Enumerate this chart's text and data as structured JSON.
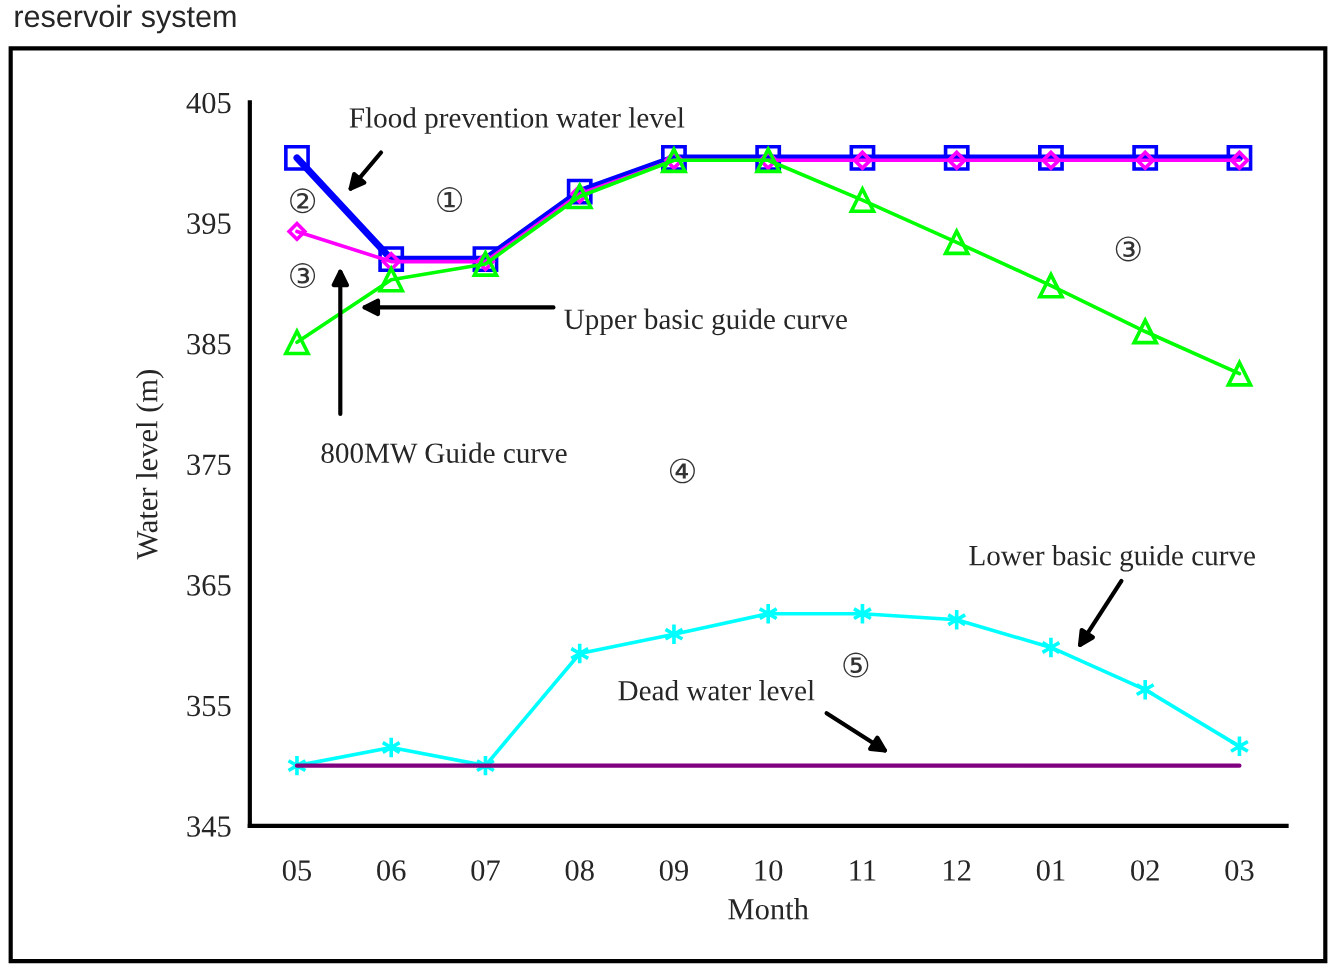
{
  "chart_data": {
    "type": "line",
    "title": "reservoir system",
    "xlabel": "Month",
    "ylabel": "Water level (m)",
    "categories": [
      "05",
      "06",
      "07",
      "08",
      "09",
      "10",
      "11",
      "12",
      "01",
      "02",
      "03"
    ],
    "series": [
      {
        "name": "Flood prevention water level",
        "color": "#0000ff",
        "marker": "square",
        "values": [
          400.4,
          392,
          392,
          397.6,
          400.4,
          400.4,
          400.4,
          400.4,
          400.4,
          400.4,
          400.4
        ]
      },
      {
        "name": "800MW Guide curve",
        "color": "#ff00ff",
        "marker": "diamond",
        "values": [
          394.3,
          391.8,
          391.8,
          397.4,
          400.2,
          400.2,
          400.2,
          400.2,
          400.2,
          400.2,
          400.2
        ]
      },
      {
        "name": "Upper basic guide curve",
        "color": "#00ff00",
        "marker": "triangle",
        "values": [
          385.1,
          390.3,
          391.6,
          397.2,
          400.2,
          400.2,
          396.9,
          393.4,
          389.8,
          386,
          382.5
        ]
      },
      {
        "name": "Lower basic guide curve",
        "color": "#00ffff",
        "marker": "cross",
        "values": [
          350,
          351.5,
          350,
          359.3,
          360.9,
          362.6,
          362.6,
          362.1,
          359.8,
          356.3,
          351.6
        ]
      },
      {
        "name": "Dead water level",
        "color": "#800080",
        "marker": "none",
        "values": [
          350,
          350,
          350,
          350,
          350,
          350,
          350,
          350,
          350,
          350,
          350
        ]
      }
    ],
    "annotations": [
      "①",
      "②",
      "③",
      "③",
      "④",
      "⑤"
    ],
    "ylim": [
      345,
      405
    ],
    "yticks": [
      345,
      355,
      365,
      375,
      385,
      395,
      405
    ],
    "grid": false,
    "legend": false
  }
}
